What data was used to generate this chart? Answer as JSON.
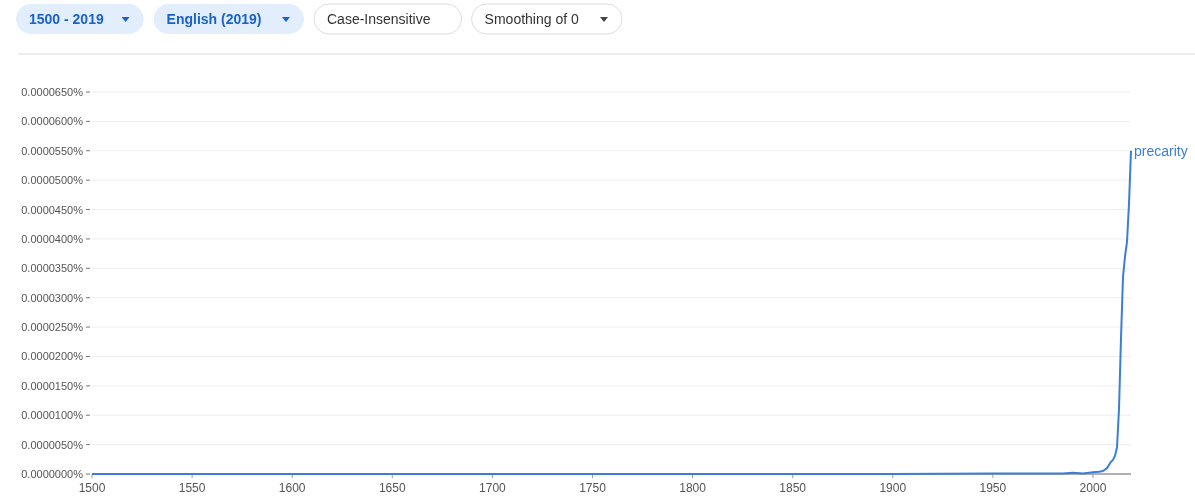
{
  "chart_data": {
    "type": "line",
    "annotations": [
      "1500 - 2019",
      "English (2019)",
      "Case-Insensitive",
      "Smoothing of 0"
    ],
    "xlim": [
      1500,
      2019
    ],
    "xticks": [
      1500,
      1550,
      1600,
      1650,
      1700,
      1750,
      1800,
      1850,
      1900,
      1950,
      2000
    ],
    "ylim": [
      0,
      6.5e-05
    ],
    "yticks": [
      {
        "value": 0,
        "label": "0.0000000%"
      },
      {
        "value": 5e-06,
        "label": "0.0000050%"
      },
      {
        "value": 1e-05,
        "label": "0.0000100%"
      },
      {
        "value": 1.5e-05,
        "label": "0.0000150%"
      },
      {
        "value": 2e-05,
        "label": "0.0000200%"
      },
      {
        "value": 2.5e-05,
        "label": "0.0000250%"
      },
      {
        "value": 3e-05,
        "label": "0.0000300%"
      },
      {
        "value": 3.5e-05,
        "label": "0.0000350%"
      },
      {
        "value": 4e-05,
        "label": "0.0000400%"
      },
      {
        "value": 4.5e-05,
        "label": "0.0000450%"
      },
      {
        "value": 5e-05,
        "label": "0.0000500%"
      },
      {
        "value": 5.5e-05,
        "label": "0.0000550%"
      },
      {
        "value": 6e-05,
        "label": "0.0000600%"
      },
      {
        "value": 6.5e-05,
        "label": "0.0000650%"
      }
    ],
    "grid": "y",
    "marker": "none",
    "line_style": "solid",
    "series": [
      {
        "name": "precarity",
        "color": "#3a7fd5",
        "x": [
          1500,
          1900,
          1950,
          1985,
          1990,
          1995,
          2000,
          2003,
          2005,
          2007,
          2009,
          2010,
          2011,
          2012,
          2013,
          2014,
          2015,
          2016,
          2017,
          2018,
          2019
        ],
        "values": [
          0,
          0,
          1e-07,
          1e-07,
          2e-07,
          1e-07,
          3e-07,
          4e-07,
          5e-07,
          1e-06,
          2.1e-06,
          2.4e-06,
          3.1e-06,
          4.5e-06,
          1.1e-05,
          2.3e-05,
          3.35e-05,
          3.7e-05,
          3.95e-05,
          4.6e-05,
          5.5e-05
        ]
      }
    ]
  }
}
